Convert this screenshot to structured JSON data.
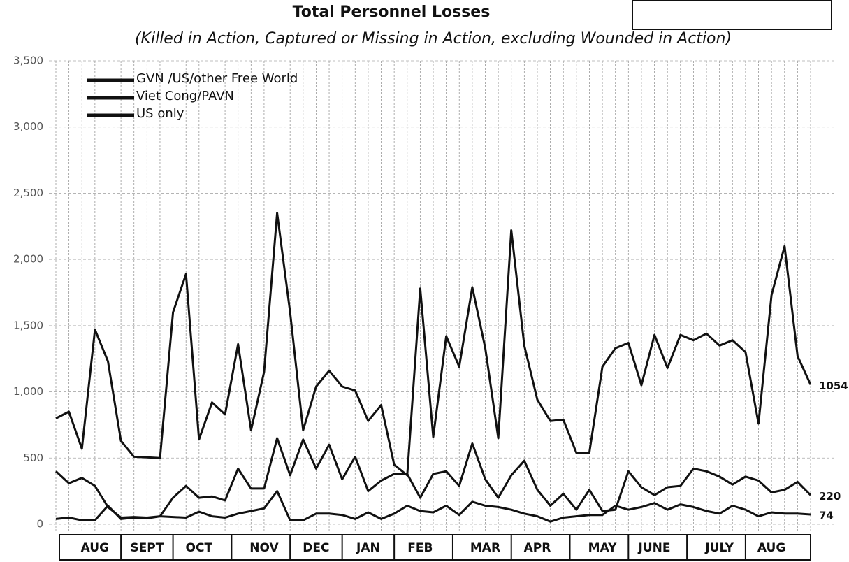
{
  "chart_data": {
    "type": "line",
    "title": "Total Personnel Losses",
    "subtitle": "(Killed in Action, Captured or Missing in Action, excluding Wounded in Action)",
    "categories": [
      null,
      null,
      null,
      "AUG",
      null,
      null,
      null,
      "SEPT",
      null,
      null,
      null,
      "OCT",
      null,
      null,
      null,
      null,
      "NOV",
      null,
      null,
      null,
      "DEC",
      null,
      null,
      null,
      "JAN",
      null,
      null,
      null,
      "FEB",
      null,
      null,
      null,
      null,
      "MAR",
      null,
      null,
      null,
      "APR",
      null,
      null,
      null,
      null,
      "MAY",
      null,
      null,
      null,
      "JUNE",
      null,
      null,
      null,
      null,
      "JULY",
      null,
      null,
      null,
      "AUG",
      null,
      null,
      null
    ],
    "series": [
      {
        "name": "GVN /US/other Free World",
        "color": "#111111",
        "values": [
          400,
          310,
          350,
          290,
          130,
          50,
          55,
          50,
          60,
          200,
          290,
          200,
          210,
          180,
          420,
          270,
          270,
          650,
          370,
          640,
          420,
          600,
          340,
          510,
          250,
          330,
          380,
          380,
          200,
          380,
          400,
          290,
          610,
          340,
          200,
          370,
          480,
          260,
          140,
          230,
          110,
          260,
          100,
          110,
          400,
          280,
          220,
          280,
          290,
          420,
          400,
          360,
          300,
          360,
          330,
          240,
          260,
          320,
          220
        ]
      },
      {
        "name": "Viet Cong/PAVN",
        "color": "#111111",
        "values": [
          800,
          850,
          570,
          1470,
          1230,
          630,
          510,
          505,
          500,
          1600,
          1890,
          640,
          920,
          830,
          1360,
          710,
          1150,
          2350,
          1600,
          710,
          1040,
          1160,
          1040,
          1010,
          780,
          900,
          450,
          370,
          1780,
          660,
          1420,
          1190,
          1790,
          1330,
          650,
          2220,
          1350,
          940,
          780,
          790,
          540,
          540,
          1190,
          1330,
          1370,
          1050,
          1430,
          1180,
          1430,
          1390,
          1440,
          1350,
          1390,
          1300,
          760,
          1730,
          2100,
          1270,
          1054
        ]
      },
      {
        "name": "US only",
        "color": "#111111",
        "values": [
          40,
          50,
          30,
          30,
          140,
          40,
          50,
          45,
          60,
          55,
          50,
          95,
          60,
          50,
          80,
          100,
          120,
          250,
          30,
          30,
          80,
          80,
          70,
          40,
          90,
          40,
          80,
          140,
          100,
          90,
          140,
          70,
          170,
          140,
          130,
          110,
          80,
          60,
          20,
          50,
          60,
          70,
          70,
          140,
          110,
          130,
          160,
          110,
          150,
          130,
          100,
          80,
          140,
          110,
          60,
          90,
          80,
          80,
          74
        ]
      }
    ],
    "ylim": [
      0,
      3500
    ],
    "yticks": [
      0,
      500,
      {
        "value": 1000,
        "label": "1,000"
      },
      {
        "value": 1500,
        "label": "1,500"
      },
      {
        "value": 2000,
        "label": "2,000"
      },
      {
        "value": 2500,
        "label": "2,500"
      },
      {
        "value": 3000,
        "label": "3,000"
      },
      {
        "value": 3500,
        "label": "3,500"
      }
    ],
    "grid": true
  }
}
